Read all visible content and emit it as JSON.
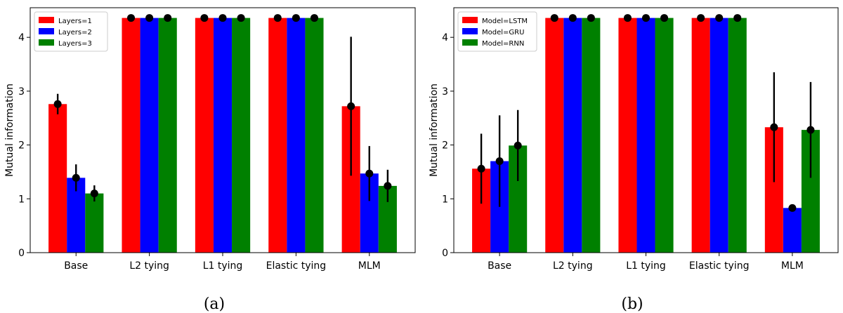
{
  "chart_data": [
    {
      "type": "bar",
      "caption": "(a)",
      "ylabel": "Mutual information",
      "xlabel": "",
      "ylim": [
        0,
        4.55
      ],
      "yticks": [
        0,
        1,
        2,
        3,
        4
      ],
      "categories": [
        "Base",
        "L2 tying",
        "L1 tying",
        "Elastic tying",
        "MLM"
      ],
      "legend_position": "top-left",
      "series": [
        {
          "name": "Layers=1",
          "color": "#ff0000",
          "values": [
            2.76,
            4.36,
            4.36,
            4.36,
            2.72
          ],
          "errors": [
            0.19,
            0.0,
            0.0,
            0.0,
            1.29
          ]
        },
        {
          "name": "Layers=2",
          "color": "#0000ff",
          "values": [
            1.39,
            4.36,
            4.36,
            4.36,
            1.47
          ],
          "errors": [
            0.25,
            0.0,
            0.0,
            0.0,
            0.51
          ]
        },
        {
          "name": "Layers=3",
          "color": "#008000",
          "values": [
            1.1,
            4.36,
            4.36,
            4.36,
            1.24
          ],
          "errors": [
            0.15,
            0.0,
            0.0,
            0.0,
            0.3
          ]
        }
      ]
    },
    {
      "type": "bar",
      "caption": "(b)",
      "ylabel": "Mutual information",
      "xlabel": "",
      "ylim": [
        0,
        4.55
      ],
      "yticks": [
        0,
        1,
        2,
        3,
        4
      ],
      "categories": [
        "Base",
        "L2 tying",
        "L1 tying",
        "Elastic tying",
        "MLM"
      ],
      "legend_position": "top-left",
      "series": [
        {
          "name": "Model=LSTM",
          "color": "#ff0000",
          "values": [
            1.56,
            4.36,
            4.36,
            4.36,
            2.33
          ],
          "errors": [
            0.65,
            0.0,
            0.0,
            0.0,
            1.02
          ]
        },
        {
          "name": "Model=GRU",
          "color": "#0000ff",
          "values": [
            1.7,
            4.36,
            4.36,
            4.36,
            0.83
          ],
          "errors": [
            0.85,
            0.0,
            0.0,
            0.0,
            0.0
          ]
        },
        {
          "name": "Model=RNN",
          "color": "#008000",
          "values": [
            1.99,
            4.36,
            4.36,
            4.36,
            2.28
          ],
          "errors": [
            0.66,
            0.0,
            0.0,
            0.0,
            0.89
          ]
        }
      ]
    }
  ]
}
